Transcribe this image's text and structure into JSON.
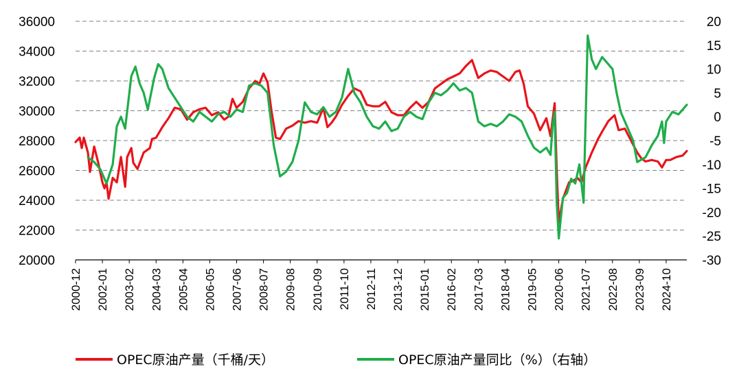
{
  "colors": {
    "production": "#e8141b",
    "yoy": "#1fad4b",
    "grid": "#7f7f7f",
    "axis": "#000000"
  },
  "chart_data": {
    "type": "line",
    "x_categories": [
      "2000-12",
      "2002-01",
      "2003-02",
      "2004-03",
      "2005-04",
      "2006-05",
      "2007-06",
      "2008-07",
      "2009-08",
      "2010-09",
      "2011-10",
      "2012-11",
      "2013-12",
      "2015-01",
      "2016-02",
      "2017-03",
      "2018-04",
      "2019-05",
      "2020-06",
      "2021-07",
      "2022-08",
      "2023-09",
      "2024-10"
    ],
    "x_range": [
      "2000-12",
      "2025-08"
    ],
    "left_axis": {
      "ticks": [
        "20000",
        "22000",
        "24000",
        "26000",
        "28000",
        "30000",
        "32000",
        "34000",
        "36000"
      ],
      "range": [
        20000,
        36000
      ]
    },
    "right_axis": {
      "ticks": [
        "-30",
        "-25",
        "-20",
        "-15",
        "-10",
        "-5",
        "0",
        "5",
        "10",
        "15",
        "20"
      ],
      "range": [
        -30,
        20
      ]
    },
    "grid": "horizontal dashed",
    "legend_position": "bottom",
    "series": [
      {
        "name": "OPEC原油产量（千桶/天）",
        "axis": "left",
        "points": [
          [
            "2000-12",
            27900
          ],
          [
            "2001-02",
            28200
          ],
          [
            "2001-03",
            27500
          ],
          [
            "2001-04",
            28200
          ],
          [
            "2001-06",
            27200
          ],
          [
            "2001-07",
            25900
          ],
          [
            "2001-09",
            27600
          ],
          [
            "2001-11",
            26500
          ],
          [
            "2002-01",
            25200
          ],
          [
            "2002-02",
            24800
          ],
          [
            "2002-03",
            25200
          ],
          [
            "2002-04",
            24100
          ],
          [
            "2002-06",
            25500
          ],
          [
            "2002-08",
            25200
          ],
          [
            "2002-10",
            26900
          ],
          [
            "2002-12",
            24900
          ],
          [
            "2003-01",
            26900
          ],
          [
            "2003-03",
            27500
          ],
          [
            "2003-04",
            26500
          ],
          [
            "2003-06",
            26100
          ],
          [
            "2003-09",
            27200
          ],
          [
            "2003-12",
            27500
          ],
          [
            "2004-01",
            28100
          ],
          [
            "2004-03",
            28200
          ],
          [
            "2004-06",
            28900
          ],
          [
            "2004-09",
            29500
          ],
          [
            "2004-12",
            30200
          ],
          [
            "2005-03",
            30100
          ],
          [
            "2005-06",
            29400
          ],
          [
            "2005-09",
            29900
          ],
          [
            "2005-12",
            30100
          ],
          [
            "2006-03",
            30200
          ],
          [
            "2006-06",
            29700
          ],
          [
            "2006-09",
            29900
          ],
          [
            "2006-12",
            29400
          ],
          [
            "2007-02",
            29600
          ],
          [
            "2007-04",
            30800
          ],
          [
            "2007-06",
            30200
          ],
          [
            "2007-09",
            30600
          ],
          [
            "2007-12",
            31500
          ],
          [
            "2008-03",
            32000
          ],
          [
            "2008-05",
            31800
          ],
          [
            "2008-07",
            32500
          ],
          [
            "2008-09",
            31900
          ],
          [
            "2008-11",
            29900
          ],
          [
            "2009-01",
            28200
          ],
          [
            "2009-03",
            28100
          ],
          [
            "2009-06",
            28800
          ],
          [
            "2009-09",
            29000
          ],
          [
            "2009-12",
            29300
          ],
          [
            "2010-03",
            29200
          ],
          [
            "2010-06",
            29300
          ],
          [
            "2010-09",
            29200
          ],
          [
            "2010-12",
            30200
          ],
          [
            "2011-02",
            28900
          ],
          [
            "2011-04",
            29200
          ],
          [
            "2011-06",
            29600
          ],
          [
            "2011-09",
            30400
          ],
          [
            "2011-12",
            31000
          ],
          [
            "2012-03",
            31500
          ],
          [
            "2012-06",
            31300
          ],
          [
            "2012-09",
            30400
          ],
          [
            "2012-12",
            30300
          ],
          [
            "2013-03",
            30300
          ],
          [
            "2013-06",
            30600
          ],
          [
            "2013-09",
            29900
          ],
          [
            "2013-12",
            29700
          ],
          [
            "2014-03",
            29700
          ],
          [
            "2014-06",
            30200
          ],
          [
            "2014-09",
            30600
          ],
          [
            "2014-12",
            30200
          ],
          [
            "2015-03",
            30600
          ],
          [
            "2015-06",
            31500
          ],
          [
            "2015-09",
            31800
          ],
          [
            "2015-12",
            32100
          ],
          [
            "2016-03",
            32300
          ],
          [
            "2016-06",
            32500
          ],
          [
            "2016-09",
            33000
          ],
          [
            "2016-12",
            33400
          ],
          [
            "2017-03",
            32200
          ],
          [
            "2017-06",
            32500
          ],
          [
            "2017-09",
            32700
          ],
          [
            "2017-12",
            32600
          ],
          [
            "2018-03",
            32300
          ],
          [
            "2018-06",
            32000
          ],
          [
            "2018-09",
            32600
          ],
          [
            "2018-11",
            32700
          ],
          [
            "2019-01",
            31800
          ],
          [
            "2019-03",
            30300
          ],
          [
            "2019-06",
            29800
          ],
          [
            "2019-09",
            28700
          ],
          [
            "2019-12",
            29500
          ],
          [
            "2020-02",
            28300
          ],
          [
            "2020-04",
            30500
          ],
          [
            "2020-05",
            26000
          ],
          [
            "2020-06",
            22500
          ],
          [
            "2020-08",
            24100
          ],
          [
            "2020-11",
            25200
          ],
          [
            "2021-01",
            25300
          ],
          [
            "2021-03",
            25500
          ],
          [
            "2021-05",
            25200
          ],
          [
            "2021-07",
            26200
          ],
          [
            "2021-10",
            27200
          ],
          [
            "2022-01",
            28100
          ],
          [
            "2022-03",
            28600
          ],
          [
            "2022-06",
            29300
          ],
          [
            "2022-09",
            29700
          ],
          [
            "2022-11",
            28700
          ],
          [
            "2023-02",
            28800
          ],
          [
            "2023-05",
            28000
          ],
          [
            "2023-08",
            27200
          ],
          [
            "2023-10",
            26800
          ],
          [
            "2023-12",
            26600
          ],
          [
            "2024-03",
            26700
          ],
          [
            "2024-06",
            26600
          ],
          [
            "2024-08",
            26200
          ],
          [
            "2024-10",
            26700
          ],
          [
            "2024-12",
            26700
          ],
          [
            "2025-03",
            26900
          ],
          [
            "2025-06",
            27000
          ],
          [
            "2025-08",
            27300
          ]
        ]
      },
      {
        "name": "OPEC原油产量同比（%）（右轴）",
        "axis": "right",
        "points": [
          [
            "2001-06",
            -8.5
          ],
          [
            "2001-09",
            -9.5
          ],
          [
            "2001-12",
            -11
          ],
          [
            "2002-03",
            -14
          ],
          [
            "2002-06",
            -10
          ],
          [
            "2002-08",
            -2
          ],
          [
            "2002-10",
            0
          ],
          [
            "2002-12",
            -2.5
          ],
          [
            "2003-03",
            8.5
          ],
          [
            "2003-05",
            10.5
          ],
          [
            "2003-07",
            7
          ],
          [
            "2003-09",
            5
          ],
          [
            "2003-11",
            1.5
          ],
          [
            "2004-02",
            8
          ],
          [
            "2004-04",
            11
          ],
          [
            "2004-06",
            10
          ],
          [
            "2004-09",
            6
          ],
          [
            "2004-12",
            4
          ],
          [
            "2005-03",
            2
          ],
          [
            "2005-06",
            0
          ],
          [
            "2005-09",
            -1
          ],
          [
            "2005-12",
            1
          ],
          [
            "2006-03",
            0
          ],
          [
            "2006-06",
            -1
          ],
          [
            "2006-09",
            0.5
          ],
          [
            "2006-12",
            1
          ],
          [
            "2007-03",
            0
          ],
          [
            "2007-06",
            1.5
          ],
          [
            "2007-09",
            1
          ],
          [
            "2007-12",
            6.5
          ],
          [
            "2008-03",
            7
          ],
          [
            "2008-06",
            6.5
          ],
          [
            "2008-09",
            5
          ],
          [
            "2008-12",
            -6
          ],
          [
            "2009-03",
            -12.5
          ],
          [
            "2009-06",
            -11.5
          ],
          [
            "2009-09",
            -9.5
          ],
          [
            "2009-12",
            -5
          ],
          [
            "2010-03",
            3
          ],
          [
            "2010-06",
            1
          ],
          [
            "2010-09",
            0.5
          ],
          [
            "2010-12",
            2
          ],
          [
            "2011-03",
            0
          ],
          [
            "2011-06",
            1
          ],
          [
            "2011-09",
            4
          ],
          [
            "2011-12",
            10
          ],
          [
            "2012-03",
            5
          ],
          [
            "2012-06",
            3
          ],
          [
            "2012-09",
            0
          ],
          [
            "2012-12",
            -2
          ],
          [
            "2013-03",
            -2.5
          ],
          [
            "2013-06",
            -1
          ],
          [
            "2013-09",
            -3
          ],
          [
            "2013-12",
            -2.5
          ],
          [
            "2014-03",
            0
          ],
          [
            "2014-06",
            1
          ],
          [
            "2014-09",
            0
          ],
          [
            "2014-12",
            -0.5
          ],
          [
            "2015-03",
            3
          ],
          [
            "2015-06",
            5
          ],
          [
            "2015-09",
            4.5
          ],
          [
            "2015-12",
            5.5
          ],
          [
            "2016-03",
            7
          ],
          [
            "2016-06",
            5.5
          ],
          [
            "2016-09",
            6
          ],
          [
            "2016-12",
            5
          ],
          [
            "2017-03",
            -1
          ],
          [
            "2017-06",
            -2
          ],
          [
            "2017-09",
            -1.5
          ],
          [
            "2017-12",
            -2
          ],
          [
            "2018-03",
            -1
          ],
          [
            "2018-06",
            0.5
          ],
          [
            "2018-09",
            0
          ],
          [
            "2018-12",
            -1
          ],
          [
            "2019-03",
            -4
          ],
          [
            "2019-06",
            -6.5
          ],
          [
            "2019-09",
            -7.5
          ],
          [
            "2019-12",
            -6.5
          ],
          [
            "2020-02",
            -8
          ],
          [
            "2020-03",
            -2
          ],
          [
            "2020-04",
            1
          ],
          [
            "2020-05",
            -18
          ],
          [
            "2020-06",
            -25.5
          ],
          [
            "2020-08",
            -17
          ],
          [
            "2020-10",
            -16
          ],
          [
            "2020-12",
            -13
          ],
          [
            "2021-02",
            -14
          ],
          [
            "2021-04",
            -10
          ],
          [
            "2021-06",
            -18
          ],
          [
            "2021-08",
            17
          ],
          [
            "2021-10",
            12
          ],
          [
            "2021-12",
            10
          ],
          [
            "2022-03",
            12.5
          ],
          [
            "2022-06",
            11
          ],
          [
            "2022-08",
            10
          ],
          [
            "2022-10",
            5
          ],
          [
            "2022-12",
            1
          ],
          [
            "2023-03",
            -2
          ],
          [
            "2023-06",
            -5
          ],
          [
            "2023-08",
            -9.5
          ],
          [
            "2023-10",
            -9
          ],
          [
            "2023-12",
            -8.5
          ],
          [
            "2024-03",
            -6
          ],
          [
            "2024-06",
            -4
          ],
          [
            "2024-08",
            -1
          ],
          [
            "2024-09",
            -5.5
          ],
          [
            "2024-10",
            -1
          ],
          [
            "2025-01",
            1
          ],
          [
            "2025-04",
            0.5
          ],
          [
            "2025-06",
            1.5
          ],
          [
            "2025-08",
            2.5
          ]
        ]
      }
    ]
  },
  "legend": {
    "production_label": "OPEC原油产量（千桶/天）",
    "yoy_label": "OPEC原油产量同比（%）（右轴）"
  }
}
